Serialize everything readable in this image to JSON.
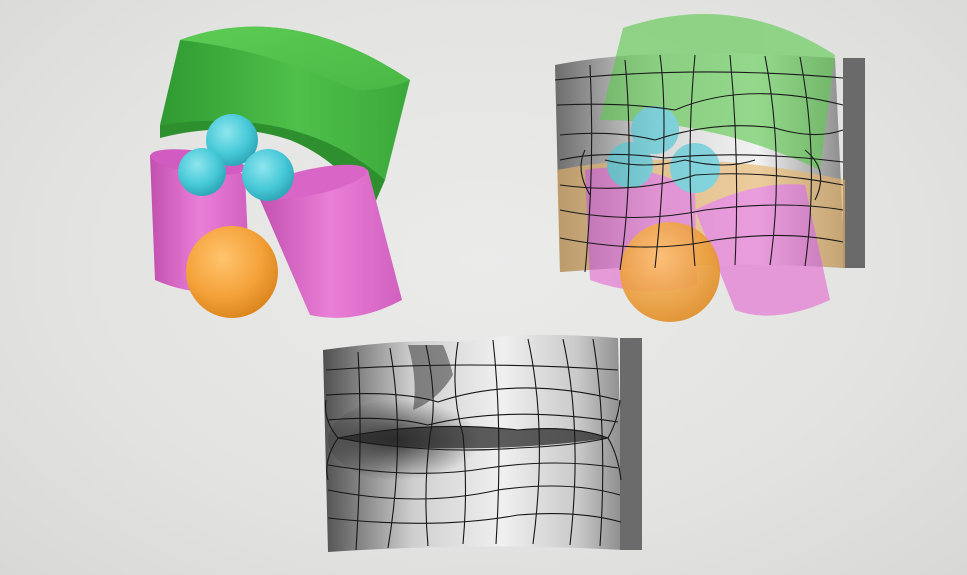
{
  "figure": {
    "subject": "lips-construction-study"
  },
  "colors": {
    "background": "#e2e2e0",
    "cylinder_green": "#4fc04a",
    "cylinder_green_dark": "#2f9a31",
    "cylinder_pink": "#e46fd0",
    "cylinder_pink_dark": "#c14fae",
    "sphere_cyan": "#47c9d8",
    "sphere_orange": "#f4a23a",
    "graphite": "#555555",
    "contour_line": "#1a1a1a"
  },
  "panels": [
    "primitive-forms",
    "forms-with-contour-overlay",
    "finished-lip-drawing"
  ]
}
